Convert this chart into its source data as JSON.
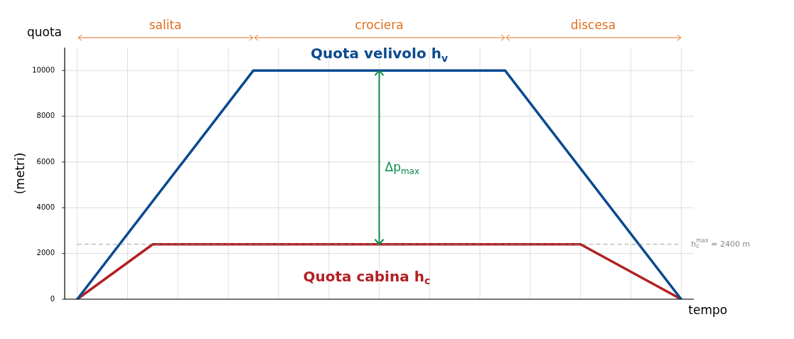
{
  "chart_data": {
    "type": "line",
    "xlabel": "tempo",
    "ylabel": "(metri)",
    "annotations": [
      "quota",
      "salita",
      "crociera",
      "discesa",
      "Δp$_{max}$"
    ],
    "categories": [
      null,
      null,
      null,
      null,
      null,
      null,
      null,
      null,
      null,
      null,
      null,
      null,
      null,
      null,
      null,
      null,
      null,
      null,
      null,
      null,
      null,
      null,
      null,
      null,
      null
    ],
    "ylim": [
      0,
      11000
    ],
    "yticks": [
      0,
      2000,
      4000,
      6000,
      8000,
      10000
    ],
    "grid": true,
    "legend": false,
    "tick_labels": "y",
    "marker": "none",
    "line_style": "solid",
    "series": [
      {
        "name": "Quota velivolo h$_{v}$",
        "color": "#0b4a8f",
        "values": [
          0,
          null,
          null,
          null,
          null,
          null,
          null,
          10000,
          null,
          null,
          null,
          null,
          null,
          null,
          null,
          null,
          null,
          10000,
          null,
          null,
          null,
          null,
          null,
          null,
          0
        ]
      },
      {
        "name": "Quota cabina h$_{c}$",
        "color": "#b22024",
        "values": [
          0,
          null,
          null,
          2400,
          null,
          null,
          null,
          null,
          null,
          null,
          null,
          null,
          null,
          null,
          null,
          null,
          null,
          null,
          null,
          null,
          2400,
          null,
          null,
          null,
          0
        ]
      }
    ],
    "ref_lines": [
      {
        "axis": "y",
        "value": 2400,
        "label": "h$_{c}$$^{max}$ = 2400 m",
        "color": "#888888",
        "line_style": "dashed"
      }
    ]
  }
}
